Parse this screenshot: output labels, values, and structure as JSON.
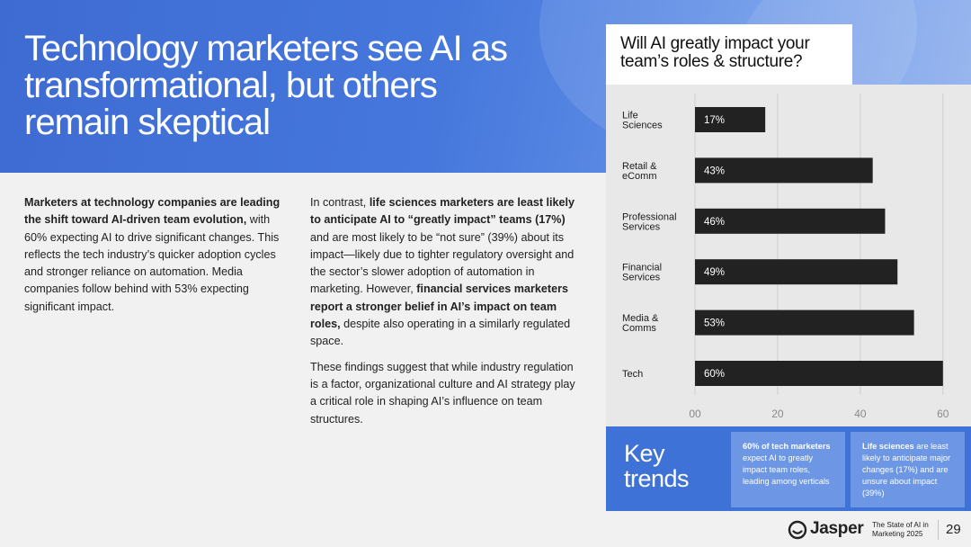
{
  "hero": {
    "title": "Technology marketers see AI as transformational, but others remain skeptical"
  },
  "column1": {
    "bold_lead": "Marketers at technology companies are leading the shift toward AI-driven team evolution,",
    "text": " with 60% expecting AI to drive significant changes. This reflects the tech industry’s quicker adoption cycles and stronger reliance on automation. Media companies follow behind with 53% expecting significant impact."
  },
  "column2": {
    "p1_a": "In contrast, ",
    "p1_b": "life sciences marketers are least likely to anticipate AI to “greatly impact” teams (17%)",
    "p1_c": " and are most likely to be “not sure” (39%) about its impact—likely due to tighter regulatory oversight and the sector’s slower adoption of automation in marketing. However, ",
    "p1_d": "financial services marketers report a stronger belief in AI’s impact on team roles,",
    "p1_e": " despite also operating in a similarly regulated space.",
    "p2": "These findings suggest that while industry regulation is a factor, organizational culture and AI strategy play a critical role in shaping AI’s influence on team structures."
  },
  "question": {
    "line1": "Will AI greatly impact your",
    "line2": "team’s roles & structure?"
  },
  "chart_data": {
    "type": "bar",
    "orientation": "horizontal",
    "title": "Will AI greatly impact your team’s roles & structure?",
    "categories": [
      [
        "Life",
        "Sciences"
      ],
      [
        "Retail &",
        "eComm"
      ],
      [
        "Professional",
        "Services"
      ],
      [
        "Financial",
        "Services"
      ],
      [
        "Media &",
        "Comms"
      ],
      [
        "Tech"
      ]
    ],
    "values": [
      17,
      43,
      46,
      49,
      53,
      60
    ],
    "value_labels": [
      "17%",
      "43%",
      "46%",
      "49%",
      "53%",
      "60%"
    ],
    "x_ticks": [
      "00",
      "20",
      "40",
      "60"
    ],
    "x_tick_values": [
      0,
      20,
      40,
      60
    ],
    "xlim": [
      0,
      62
    ],
    "grid": true,
    "bar_color": "#222222"
  },
  "trends": {
    "title_line1": "Key",
    "title_line2": "trends",
    "card1_bold": "60% of tech marketers",
    "card1_text": " expect AI to greatly impact team roles, leading among verticals",
    "card2_bold": "Life sciences",
    "card2_text": " are least likely to anticipate major changes (17%) and are unsure about impact (39%)"
  },
  "footer": {
    "brand": "Jasper",
    "subtitle_line1": "The State of AI in",
    "subtitle_line2": "Marketing 2025",
    "page": "29"
  }
}
